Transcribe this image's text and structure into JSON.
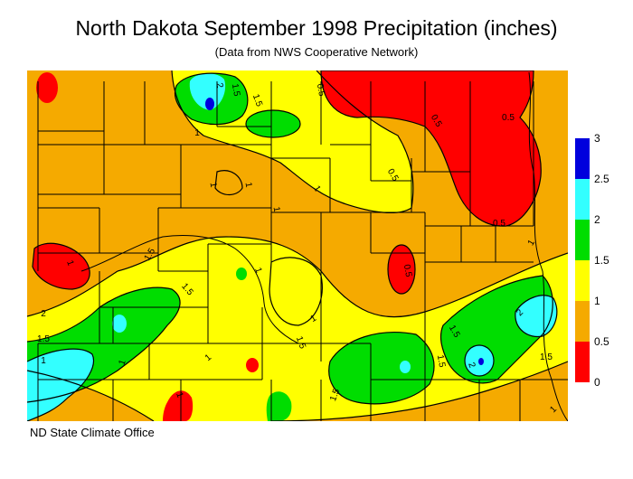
{
  "title": "North Dakota September 1998 Precipitation (inches)",
  "subtitle": "(Data from NWS Cooperative Network)",
  "credit": "ND State Climate Office",
  "legend": {
    "bins": [
      {
        "min": 0,
        "max": 0.5,
        "color": "#ff0000"
      },
      {
        "min": 0.5,
        "max": 1,
        "color": "#f5aa00"
      },
      {
        "min": 1,
        "max": 1.5,
        "color": "#ffff00"
      },
      {
        "min": 1.5,
        "max": 2,
        "color": "#00dd00"
      },
      {
        "min": 2,
        "max": 2.5,
        "color": "#33ffff"
      },
      {
        "min": 2.5,
        "max": 3,
        "color": "#0000dd"
      }
    ],
    "ticks": [
      "3",
      "2.5",
      "2",
      "1.5",
      "1",
      "0.5",
      "0"
    ]
  },
  "contour_labels": [
    "2",
    "1.5",
    "1.5",
    "0.5",
    "0.5",
    "0.5",
    "1",
    "1",
    "1",
    "1",
    "0.5",
    "0.5",
    "1",
    "1.5",
    "1.5",
    "1",
    "1",
    "1.5",
    "2",
    "1.5",
    "1",
    "1",
    "1",
    "1.5",
    "1.5",
    "1.5",
    "2",
    "2",
    "1.5",
    "1",
    "1",
    "0.5",
    "1",
    "1"
  ]
}
